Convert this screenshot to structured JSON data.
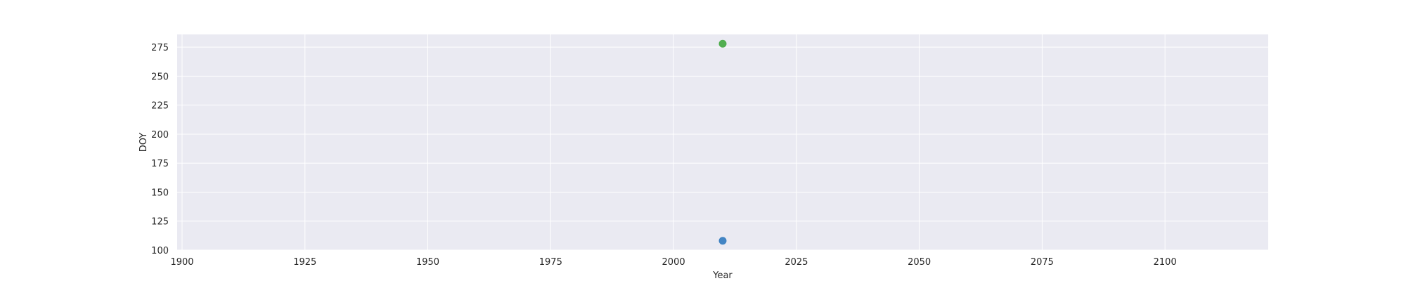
{
  "chart_data": {
    "type": "scatter",
    "title": "",
    "xlabel": "Year",
    "ylabel": "DOY",
    "xlim": [
      1899,
      2121
    ],
    "ylim": [
      100,
      286
    ],
    "x_ticks": [
      1900,
      1925,
      1950,
      1975,
      2000,
      2025,
      2050,
      2075,
      2100
    ],
    "x_tick_labels": [
      "1900",
      "1925",
      "1950",
      "1975",
      "2000",
      "2025",
      "2050",
      "2075",
      "2100"
    ],
    "y_ticks": [
      100,
      125,
      150,
      175,
      200,
      225,
      250,
      275
    ],
    "y_tick_labels": [
      "100",
      "125",
      "150",
      "175",
      "200",
      "225",
      "250",
      "275"
    ],
    "grid": true,
    "background_color": "#eaeaf2",
    "grid_color": "#ffffff",
    "points": [
      {
        "x": 2010,
        "y": 108,
        "color": "#3a80c1"
      },
      {
        "x": 2010,
        "y": 278,
        "color": "#4aab48"
      }
    ]
  }
}
